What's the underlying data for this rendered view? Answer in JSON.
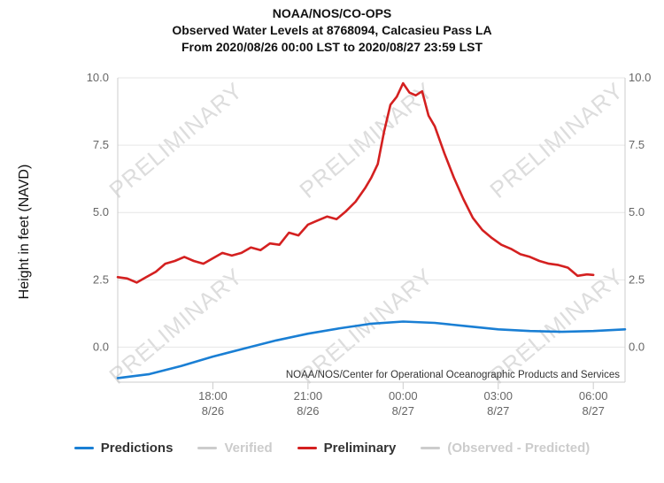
{
  "title": {
    "line1": "NOAA/NOS/CO-OPS",
    "line2": "Observed Water Levels at 8768094, Calcasieu Pass LA",
    "line3": "From 2020/08/26 00:00 LST to 2020/08/27 23:59 LST"
  },
  "credit": "NOAA/NOS/Center for Operational Oceanographic Products and Services",
  "watermark": "PRELIMINARY",
  "colors": {
    "predictions": "#1a7fd4",
    "preliminary": "#d42020",
    "muted": "#cccccc",
    "grid": "#e6e6e6",
    "axis_text": "#666666"
  },
  "legend": [
    {
      "key": "predictions",
      "label": "Predictions",
      "color": "#1a7fd4",
      "active": true
    },
    {
      "key": "verified",
      "label": "Verified",
      "color": "#cccccc",
      "active": false
    },
    {
      "key": "preliminary",
      "label": "Preliminary",
      "color": "#d42020",
      "active": true
    },
    {
      "key": "obs_minus_pred",
      "label": "(Observed - Predicted)",
      "color": "#cccccc",
      "active": false
    }
  ],
  "chart_data": {
    "type": "line",
    "title": "Observed Water Levels at 8768094, Calcasieu Pass LA",
    "ylabel": "Height in feet (NAVD)",
    "xlabel": "",
    "ylim": [
      -1.3,
      10.0
    ],
    "xlim": [
      "2020-08-26 15:00",
      "2020-08-27 07:00"
    ],
    "y_ticks": [
      "10.0",
      "7.5",
      "5.0",
      "2.5",
      "0.0"
    ],
    "y_tick_values": [
      10.0,
      7.5,
      5.0,
      2.5,
      0.0
    ],
    "x_ticks": [
      {
        "time": "2020-08-26 18:00",
        "label1": "18:00",
        "label2": "8/26"
      },
      {
        "time": "2020-08-26 21:00",
        "label1": "21:00",
        "label2": "8/26"
      },
      {
        "time": "2020-08-27 00:00",
        "label1": "00:00",
        "label2": "8/27"
      },
      {
        "time": "2020-08-27 03:00",
        "label1": "03:00",
        "label2": "8/27"
      },
      {
        "time": "2020-08-27 06:00",
        "label1": "06:00",
        "label2": "8/27"
      }
    ],
    "grid": true,
    "series": [
      {
        "name": "Predictions",
        "color": "#1a7fd4",
        "x": [
          "2020-08-26 15:00",
          "2020-08-26 16:00",
          "2020-08-26 17:00",
          "2020-08-26 18:00",
          "2020-08-26 19:00",
          "2020-08-26 20:00",
          "2020-08-26 21:00",
          "2020-08-26 22:00",
          "2020-08-26 23:00",
          "2020-08-27 00:00",
          "2020-08-27 01:00",
          "2020-08-27 02:00",
          "2020-08-27 03:00",
          "2020-08-27 04:00",
          "2020-08-27 05:00",
          "2020-08-27 06:00",
          "2020-08-27 07:00"
        ],
        "y": [
          -1.15,
          -1.0,
          -0.7,
          -0.35,
          -0.05,
          0.25,
          0.5,
          0.7,
          0.87,
          0.95,
          0.9,
          0.78,
          0.66,
          0.6,
          0.57,
          0.6,
          0.66
        ]
      },
      {
        "name": "Preliminary",
        "color": "#d42020",
        "x": [
          "2020-08-26 15:00",
          "2020-08-26 15:18",
          "2020-08-26 15:36",
          "2020-08-26 15:54",
          "2020-08-26 16:12",
          "2020-08-26 16:30",
          "2020-08-26 16:48",
          "2020-08-26 17:06",
          "2020-08-26 17:24",
          "2020-08-26 17:42",
          "2020-08-26 18:00",
          "2020-08-26 18:18",
          "2020-08-26 18:36",
          "2020-08-26 18:54",
          "2020-08-26 19:12",
          "2020-08-26 19:30",
          "2020-08-26 19:48",
          "2020-08-26 20:06",
          "2020-08-26 20:24",
          "2020-08-26 20:42",
          "2020-08-26 21:00",
          "2020-08-26 21:18",
          "2020-08-26 21:36",
          "2020-08-26 21:54",
          "2020-08-26 22:12",
          "2020-08-26 22:30",
          "2020-08-26 22:48",
          "2020-08-26 23:00",
          "2020-08-26 23:12",
          "2020-08-26 23:24",
          "2020-08-26 23:36",
          "2020-08-26 23:48",
          "2020-08-27 00:00",
          "2020-08-27 00:12",
          "2020-08-27 00:24",
          "2020-08-27 00:36",
          "2020-08-27 00:48",
          "2020-08-27 01:00",
          "2020-08-27 01:18",
          "2020-08-27 01:36",
          "2020-08-27 01:54",
          "2020-08-27 02:12",
          "2020-08-27 02:30",
          "2020-08-27 02:48",
          "2020-08-27 03:06",
          "2020-08-27 03:24",
          "2020-08-27 03:42",
          "2020-08-27 04:00",
          "2020-08-27 04:18",
          "2020-08-27 04:36",
          "2020-08-27 04:54",
          "2020-08-27 05:12",
          "2020-08-27 05:30",
          "2020-08-27 05:48",
          "2020-08-27 06:00"
        ],
        "y": [
          2.6,
          2.55,
          2.4,
          2.6,
          2.8,
          3.1,
          3.2,
          3.35,
          3.2,
          3.1,
          3.3,
          3.5,
          3.4,
          3.5,
          3.7,
          3.6,
          3.85,
          3.8,
          4.25,
          4.15,
          4.55,
          4.7,
          4.85,
          4.75,
          5.05,
          5.4,
          5.9,
          6.3,
          6.8,
          8.0,
          9.0,
          9.3,
          9.8,
          9.45,
          9.35,
          9.5,
          8.6,
          8.2,
          7.2,
          6.3,
          5.5,
          4.8,
          4.35,
          4.05,
          3.8,
          3.65,
          3.45,
          3.35,
          3.2,
          3.1,
          3.05,
          2.95,
          2.65,
          2.7,
          2.68
        ]
      }
    ]
  }
}
